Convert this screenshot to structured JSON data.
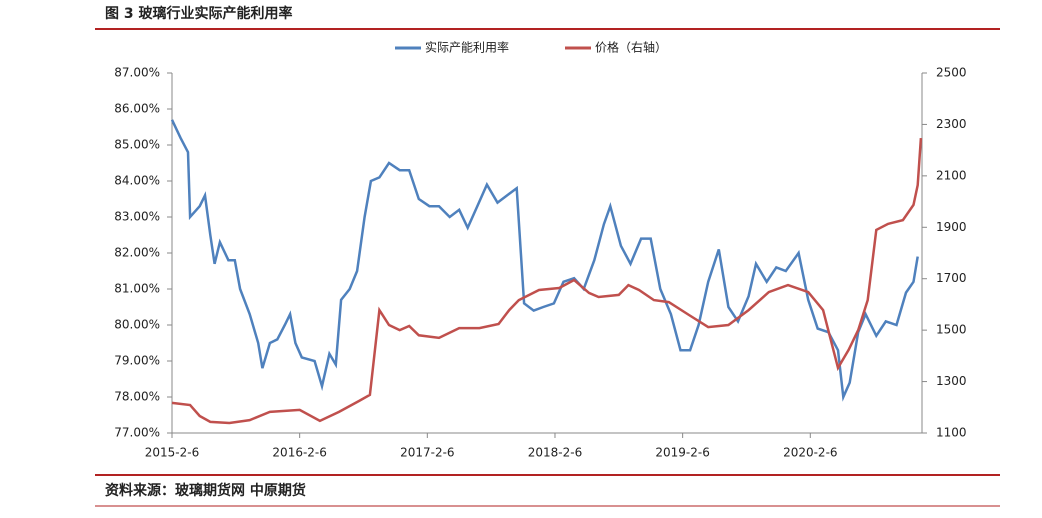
{
  "header": {
    "title": "图 3  玻璃行业实际产能利用率"
  },
  "footer": {
    "source": "资料来源：玻璃期货网    中原期货"
  },
  "chart_data": {
    "type": "line",
    "xlim": [
      0,
      70.5
    ],
    "xticks": [
      {
        "value": 0,
        "label": "2015-2-6"
      },
      {
        "value": 12,
        "label": "2016-2-6"
      },
      {
        "value": 24,
        "label": "2017-2-6"
      },
      {
        "value": 36,
        "label": "2018-2-6"
      },
      {
        "value": 48,
        "label": "2019-2-6"
      },
      {
        "value": 60,
        "label": "2020-2-6"
      }
    ],
    "ylim": [
      77,
      87
    ],
    "yticks": [
      {
        "value": 77,
        "label": "77.00%"
      },
      {
        "value": 78,
        "label": "78.00%"
      },
      {
        "value": 79,
        "label": "79.00%"
      },
      {
        "value": 80,
        "label": "80.00%"
      },
      {
        "value": 81,
        "label": "81.00%"
      },
      {
        "value": 82,
        "label": "82.00%"
      },
      {
        "value": 83,
        "label": "83.00%"
      },
      {
        "value": 84,
        "label": "84.00%"
      },
      {
        "value": 85,
        "label": "85.00%"
      },
      {
        "value": 86,
        "label": "86.00%"
      },
      {
        "value": 87,
        "label": "87.00%"
      }
    ],
    "y2lim": [
      1100,
      2500
    ],
    "y2ticks": [
      1100,
      1300,
      1500,
      1700,
      1900,
      2100,
      2300,
      2500
    ],
    "legend": "top",
    "series": [
      {
        "name": "实际产能利用率",
        "color": "#4f81bd",
        "x": [
          0,
          0.8,
          1.5,
          1.7,
          2.6,
          3.1,
          3.6,
          4.0,
          4.5,
          5.3,
          5.9,
          6.4,
          7.3,
          8.1,
          8.5,
          9.2,
          9.9,
          10.6,
          11.1,
          11.6,
          12.2,
          13.4,
          14.1,
          14.8,
          15.4,
          15.9,
          16.7,
          17.4,
          18.1,
          18.7,
          19.5,
          20.4,
          21.4,
          22.3,
          23.2,
          24.2,
          25.1,
          26.1,
          27.0,
          27.8,
          28.7,
          29.6,
          30.6,
          31.5,
          32.4,
          33.1,
          34.0,
          34.9,
          35.9,
          36.8,
          37.8,
          38.7,
          39.7,
          40.6,
          41.2,
          42.2,
          43.1,
          44.1,
          45.0,
          45.9,
          46.9,
          47.8,
          48.7,
          49.5,
          50.4,
          51.4,
          52.3,
          53.2,
          54.2,
          54.9,
          55.9,
          56.8,
          57.7,
          58.9,
          59.8,
          60.7,
          61.7,
          62.6,
          63.1,
          63.7,
          64.5,
          65.2,
          66.2,
          67.1,
          68.1,
          69.0,
          69.7,
          70.1
        ],
        "values": [
          85.7,
          85.2,
          84.8,
          83.0,
          83.3,
          83.6,
          82.5,
          81.7,
          82.3,
          81.8,
          81.8,
          81.0,
          80.3,
          79.5,
          78.8,
          79.5,
          79.6,
          80.0,
          80.3,
          79.5,
          79.1,
          79.0,
          78.3,
          79.2,
          78.9,
          80.7,
          81.0,
          81.5,
          83.0,
          84.0,
          84.1,
          84.5,
          84.3,
          84.3,
          83.5,
          83.3,
          83.3,
          83.0,
          83.2,
          82.7,
          83.3,
          83.9,
          83.4,
          83.6,
          83.8,
          80.6,
          80.4,
          80.5,
          80.6,
          81.2,
          81.3,
          81.0,
          81.8,
          82.8,
          83.3,
          82.2,
          81.7,
          82.4,
          82.4,
          81.0,
          80.3,
          79.3,
          79.3,
          80.0,
          81.2,
          82.1,
          80.5,
          80.1,
          80.8,
          81.7,
          81.2,
          81.6,
          81.5,
          82.0,
          80.7,
          79.9,
          79.8,
          79.3,
          78.0,
          78.4,
          79.8,
          80.3,
          79.7,
          80.1,
          80.0,
          80.9,
          81.2,
          81.9
        ]
      },
      {
        "name": "价格（右轴）",
        "color": "#c0504d",
        "axis": "y2",
        "x": [
          0,
          1.7,
          2.6,
          3.6,
          5.4,
          7.3,
          9.2,
          12.0,
          13.9,
          15.7,
          17.6,
          18.6,
          19.5,
          20.4,
          21.4,
          22.3,
          23.2,
          25.1,
          27.0,
          28.9,
          30.7,
          31.7,
          32.6,
          34.5,
          36.4,
          37.8,
          39.2,
          40.1,
          42.0,
          42.9,
          43.9,
          45.3,
          46.7,
          48.6,
          50.4,
          52.3,
          54.2,
          56.1,
          57.9,
          59.8,
          61.2,
          62.6,
          63.6,
          64.5,
          65.4,
          66.2,
          67.3,
          68.7,
          69.7,
          70.1,
          70.4
        ],
        "values": [
          1217,
          1209,
          1166,
          1143,
          1139,
          1150,
          1182,
          1190,
          1147,
          1182,
          1225,
          1248,
          1578,
          1520,
          1500,
          1516,
          1480,
          1470,
          1508,
          1508,
          1524,
          1578,
          1617,
          1656,
          1664,
          1695,
          1645,
          1629,
          1637,
          1675,
          1656,
          1617,
          1609,
          1559,
          1512,
          1520,
          1578,
          1648,
          1675,
          1648,
          1578,
          1353,
          1423,
          1500,
          1617,
          1890,
          1913,
          1928,
          1987,
          2064,
          2247
        ]
      }
    ]
  }
}
